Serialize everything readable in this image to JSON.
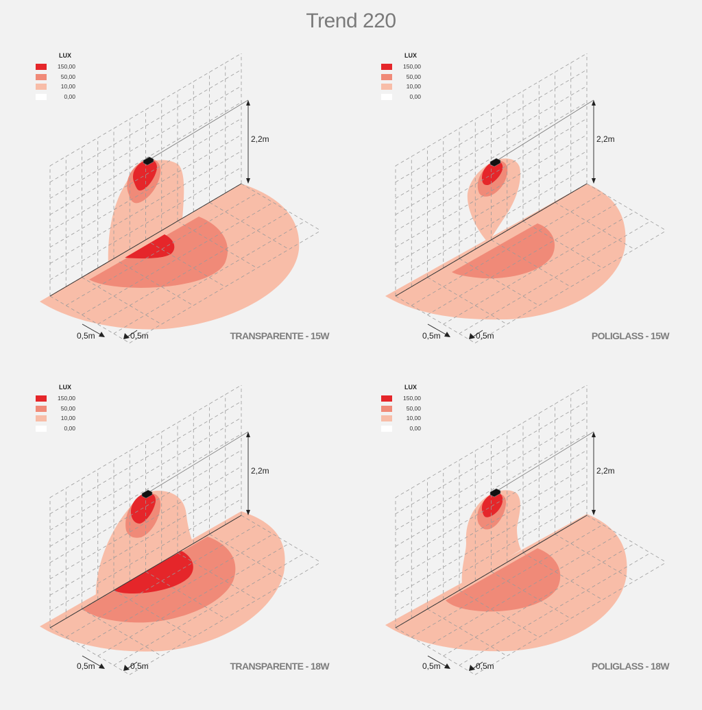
{
  "title": "Trend 220",
  "colors": {
    "lux_150": "#e5262a",
    "lux_50": "#f08a78",
    "lux_10": "#f8bda8",
    "lux_0": "#ffffff",
    "background": "#f2f2f2",
    "grid": "#9a9a9a"
  },
  "legend": {
    "title": "LUX",
    "items": [
      {
        "label": "150,00",
        "color_key": "lux_150"
      },
      {
        "label": "50,00",
        "color_key": "lux_50"
      },
      {
        "label": "10,00",
        "color_key": "lux_10"
      },
      {
        "label": "0,00",
        "color_key": "lux_0"
      }
    ]
  },
  "dimensions": {
    "height": "2,2m",
    "grid_a": "0,5m",
    "grid_b": "0,5m"
  },
  "panels": [
    {
      "caption": "TRANSPARENTE - 15W",
      "variant": "t15"
    },
    {
      "caption": "POLIGLASS - 15W",
      "variant": "p15"
    },
    {
      "caption": "TRANSPARENTE - 18W",
      "variant": "t18"
    },
    {
      "caption": "POLIGLASS - 18W",
      "variant": "p18"
    }
  ],
  "icons": {
    "luminaire": "luminaire-icon"
  }
}
